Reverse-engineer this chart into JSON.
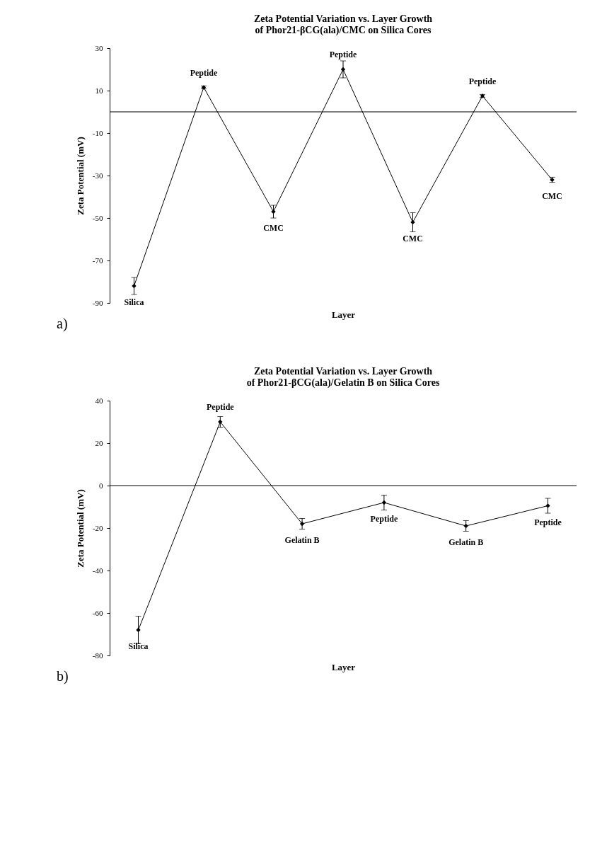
{
  "chart_data": [
    {
      "type": "line",
      "title": [
        "Zeta Potential Variation vs. Layer Growth",
        "of Phor21-βCG(ala)/CMC on Silica Cores"
      ],
      "xlabel": "Layer",
      "ylabel": "Zeta Potential (mV)",
      "categories": [
        null,
        null,
        null,
        null,
        null,
        null,
        null
      ],
      "series": [
        {
          "color": "#000000",
          "values": [
            -82,
            11.5,
            -47,
            20,
            -52,
            7.5,
            -32
          ],
          "errors": [
            4,
            0.7,
            3,
            4,
            4.5,
            0.7,
            1.2
          ]
        }
      ],
      "ylim": [
        -90,
        30
      ],
      "yticks": [
        -90,
        -70,
        -50,
        -30,
        -10,
        10,
        30
      ],
      "marker": "diamond",
      "grid": false,
      "ref_lines": [
        {
          "axis": "y",
          "value": 0
        }
      ],
      "annotations": [
        {
          "text": "Silica",
          "y": -82
        },
        {
          "text": "Peptide",
          "y": 11.5
        },
        {
          "text": "CMC",
          "y": -47
        },
        {
          "text": "Peptide",
          "y": 20
        },
        {
          "text": "CMC",
          "y": -52
        },
        {
          "text": "Peptide",
          "y": 7.5
        },
        {
          "text": "CMC",
          "y": -32
        },
        "a)"
      ]
    },
    {
      "type": "line",
      "title": [
        "Zeta Potential Variation vs. Layer Growth",
        "of Phor21-βCG(ala)/Gelatin B on Silica Cores"
      ],
      "xlabel": "Layer",
      "ylabel": "Zeta Potential (mV)",
      "categories": [
        null,
        null,
        null,
        null,
        null,
        null
      ],
      "series": [
        {
          "color": "#000000",
          "values": [
            -68,
            30,
            -18,
            -8,
            -19,
            -9.5
          ],
          "errors": [
            6.5,
            2.5,
            2.5,
            3.5,
            2.5,
            3.5
          ]
        }
      ],
      "ylim": [
        -80,
        40
      ],
      "yticks": [
        -80,
        -60,
        -40,
        -20,
        0,
        20,
        40
      ],
      "marker": "diamond",
      "grid": false,
      "ref_lines": [
        {
          "axis": "y",
          "value": 0
        }
      ],
      "annotations": [
        {
          "text": "Silica",
          "y": -68
        },
        {
          "text": "Peptide",
          "y": 30
        },
        {
          "text": "Gelatin B",
          "y": -18
        },
        {
          "text": "Peptide",
          "y": -8
        },
        {
          "text": "Gelatin B",
          "y": -19
        },
        {
          "text": "Peptide",
          "y": -9.5
        },
        "b)"
      ]
    }
  ]
}
